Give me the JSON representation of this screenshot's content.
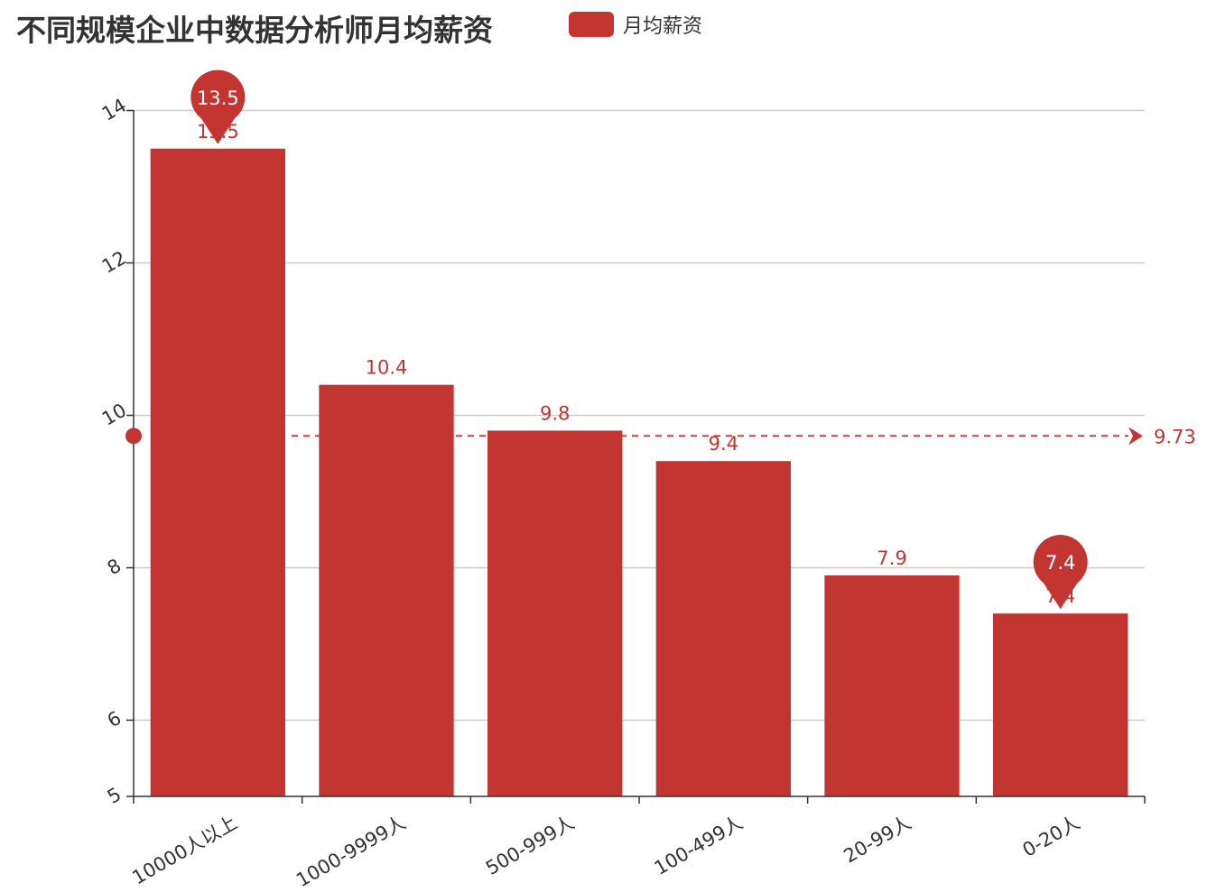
{
  "chart_data": {
    "type": "bar",
    "title": "不同规模企业中数据分析师月均薪资",
    "legend": {
      "label": "月均薪资",
      "placement": "top"
    },
    "categories": [
      "10000人以上",
      "1000-9999人",
      "500-999人",
      "100-499人",
      "20-99人",
      "0-20人"
    ],
    "series": [
      {
        "name": "月均薪资",
        "values": [
          13.5,
          10.4,
          9.8,
          9.4,
          7.9,
          7.4
        ]
      }
    ],
    "ylim": [
      5,
      14
    ],
    "yticks": [
      5,
      6,
      8,
      10,
      12,
      14
    ],
    "grid": true,
    "mark_points": [
      {
        "label": "13.5",
        "value": 13.5,
        "category_index": 0
      },
      {
        "label": "7.4",
        "value": 7.4,
        "category_index": 5
      }
    ],
    "mark_line": {
      "label": "9.73",
      "value": 9.73
    },
    "colors": {
      "bar": "#c23531",
      "grid": "#cccccc",
      "axis": "#333333"
    }
  }
}
